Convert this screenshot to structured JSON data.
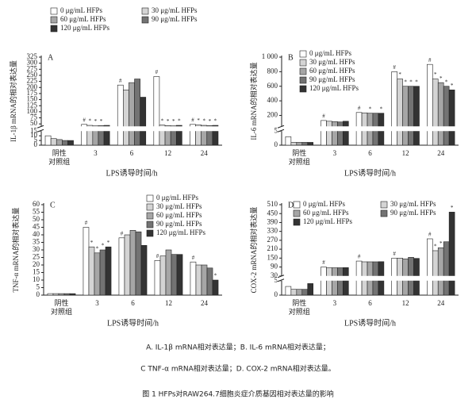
{
  "chart_data": [
    {
      "type": "bar",
      "panel": "A",
      "ylabel": "IL-1β mRNA的相对表达量",
      "xlabel": "LPS诱导时间/h",
      "categories": [
        "阴性\n对照组",
        "3",
        "6",
        "12",
        "24"
      ],
      "ylim": [
        0,
        325
      ],
      "ybreak": [
        15,
        40
      ],
      "yticks": [
        0,
        5,
        10,
        15,
        50,
        75,
        100,
        125,
        150,
        175,
        200,
        225,
        250,
        275,
        300,
        325
      ],
      "legend": "top",
      "legend_columns": 2,
      "series": [
        {
          "name": "0 μg/mL HFPs",
          "color": "#ffffff",
          "values": [
            10,
            48,
            210,
            245,
            48
          ],
          "marks": [
            null,
            "#",
            "#",
            "#",
            "#"
          ]
        },
        {
          "name": "30 μg/mL HFPs",
          "color": "#d4d4d4",
          "values": [
            7,
            44,
            190,
            45,
            46
          ],
          "marks": [
            null,
            "*",
            null,
            "*",
            "*"
          ]
        },
        {
          "name": "60 μg/mL HFPs",
          "color": "#a6a6a6",
          "values": [
            6,
            42,
            220,
            43,
            44
          ],
          "marks": [
            null,
            "*",
            null,
            "*",
            "*"
          ]
        },
        {
          "name": "90 μg/mL HFPs",
          "color": "#737373",
          "values": [
            5,
            43,
            235,
            42,
            43
          ],
          "marks": [
            null,
            "*",
            null,
            "*",
            "*"
          ]
        },
        {
          "name": "120 μg/mL HFPs",
          "color": "#333333",
          "values": [
            5,
            44,
            160,
            44,
            44
          ],
          "marks": [
            null,
            null,
            null,
            "*",
            "*"
          ]
        }
      ]
    },
    {
      "type": "bar",
      "panel": "B",
      "ylabel": "IL-6 mRNA的相对表达量",
      "xlabel": "LPS诱导时间/h",
      "categories": [
        "阴性\n对照组",
        "3",
        "6",
        "12",
        "24"
      ],
      "ylim": [
        0,
        1000
      ],
      "ybreak": [
        5,
        50
      ],
      "yticks": [
        0,
        5,
        200,
        400,
        600,
        800,
        {
          "value": 1000,
          "label": "1 000"
        }
      ],
      "legend": "upper right",
      "legend_columns": 1,
      "series": [
        {
          "name": "0 μg/mL HFPs",
          "color": "#ffffff",
          "values": [
            3,
            130,
            240,
            800,
            900
          ],
          "marks": [
            null,
            "#",
            "#",
            "#",
            "#"
          ]
        },
        {
          "name": "30 μg/mL HFPs",
          "color": "#d4d4d4",
          "values": [
            1,
            120,
            235,
            700,
            700
          ],
          "marks": [
            null,
            null,
            null,
            "*",
            "*"
          ]
        },
        {
          "name": "60 μg/mL HFPs",
          "color": "#a6a6a6",
          "values": [
            1,
            115,
            230,
            600,
            650
          ],
          "marks": [
            null,
            null,
            "*",
            "*",
            "*"
          ]
        },
        {
          "name": "90 μg/mL HFPs",
          "color": "#737373",
          "values": [
            1,
            110,
            230,
            600,
            600
          ],
          "marks": [
            null,
            null,
            null,
            "*",
            "*"
          ]
        },
        {
          "name": "120 μg/mL HFPs",
          "color": "#333333",
          "values": [
            1,
            120,
            230,
            600,
            550
          ],
          "marks": [
            null,
            null,
            "*",
            "*",
            "*"
          ]
        }
      ]
    },
    {
      "type": "bar",
      "panel": "C",
      "ylabel": "TNF-α mRNA的相对表达量",
      "xlabel": "LPS诱导时间/h",
      "categories": [
        "阴性\n对照组",
        "3",
        "6",
        "12",
        "24"
      ],
      "ylim": [
        0,
        60
      ],
      "yticks": [
        0,
        5,
        10,
        15,
        20,
        25,
        30,
        35,
        40,
        45,
        50,
        55,
        60
      ],
      "legend": "upper right",
      "legend_columns": 1,
      "series": [
        {
          "name": "0 μg/mL HFPs",
          "color": "#ffffff",
          "values": [
            1,
            45,
            38,
            23,
            22
          ],
          "marks": [
            null,
            "#",
            "#",
            "#",
            "#"
          ]
        },
        {
          "name": "30 μg/mL HFPs",
          "color": "#d4d4d4",
          "values": [
            1,
            32,
            40,
            26,
            20
          ],
          "marks": [
            null,
            "*",
            null,
            null,
            null
          ]
        },
        {
          "name": "60 μg/mL HFPs",
          "color": "#a6a6a6",
          "values": [
            1,
            28,
            43,
            30,
            20
          ],
          "marks": [
            null,
            "*",
            null,
            null,
            null
          ]
        },
        {
          "name": "90 μg/mL HFPs",
          "color": "#737373",
          "values": [
            1,
            30,
            42,
            27,
            18
          ],
          "marks": [
            null,
            "*",
            null,
            null,
            null
          ]
        },
        {
          "name": "120 μg/mL HFPs",
          "color": "#333333",
          "values": [
            1,
            32,
            33,
            27,
            10
          ],
          "marks": [
            null,
            "*",
            null,
            null,
            "*"
          ]
        }
      ]
    },
    {
      "type": "bar",
      "panel": "D",
      "ylabel": "COX-2 mRNA的相对表达量",
      "xlabel": "LPS诱导时间/h",
      "categories": [
        "阴性\n对照组",
        "3",
        "6",
        "12",
        "24"
      ],
      "ylim": [
        0,
        510
      ],
      "ybreak": [
        5,
        30
      ],
      "yticks": [
        0,
        5,
        30,
        90,
        150,
        210,
        270,
        330,
        390,
        450,
        510
      ],
      "legend": "top",
      "legend_columns": 2,
      "series": [
        {
          "name": "0 μg/mL HFPs",
          "color": "#ffffff",
          "values": [
            3,
            90,
            130,
            150,
            280
          ],
          "marks": [
            null,
            "#",
            "#",
            "#",
            "#"
          ]
        },
        {
          "name": "30 μg/mL HFPs",
          "color": "#d4d4d4",
          "values": [
            2,
            85,
            125,
            150,
            200
          ],
          "marks": [
            null,
            null,
            null,
            null,
            "*"
          ]
        },
        {
          "name": "60 μg/mL HFPs",
          "color": "#a6a6a6",
          "values": [
            2,
            85,
            125,
            145,
            220
          ],
          "marks": [
            null,
            null,
            null,
            null,
            "*"
          ]
        },
        {
          "name": "90 μg/mL HFPs",
          "color": "#737373",
          "values": [
            2,
            85,
            125,
            155,
            260
          ],
          "marks": [
            null,
            null,
            null,
            null,
            null
          ]
        },
        {
          "name": "120 μg/mL HFPs",
          "color": "#333333",
          "values": [
            4,
            86,
            126,
            148,
            460
          ],
          "marks": [
            null,
            null,
            null,
            null,
            "*"
          ]
        }
      ]
    }
  ],
  "caption": {
    "line1": "A. IL-1β mRNA相对表达量；B. IL-6 mRNA相对表达量；",
    "line2": "C TNF-α mRNA相对表达量；D. COX-2 mRNA相对表达量。",
    "title": "图 1 HFPs对RAW264.7细胞炎症介质基因相对表达量的影响"
  }
}
